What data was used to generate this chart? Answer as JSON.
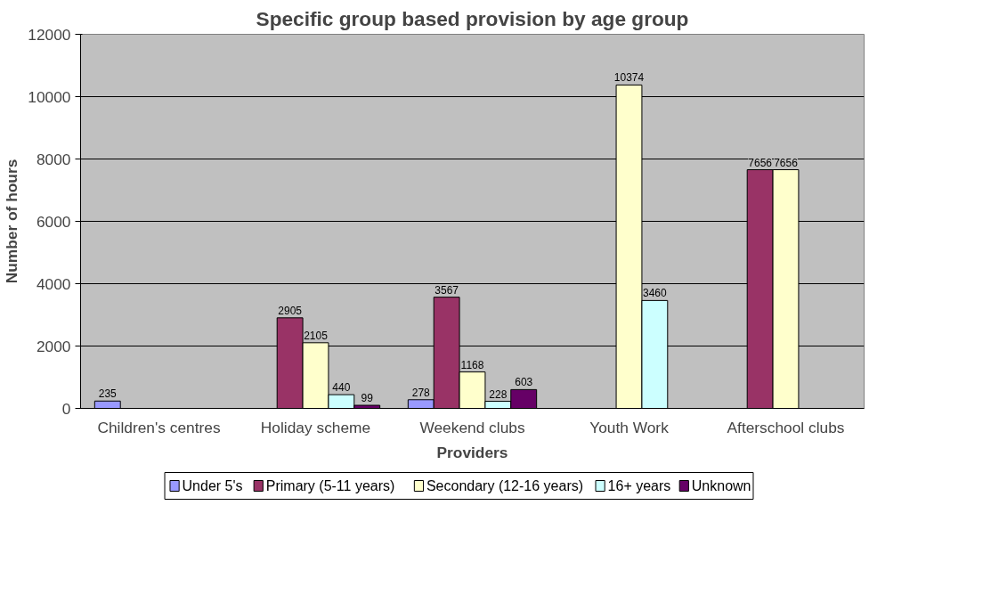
{
  "chart_data": {
    "type": "bar",
    "title": "Specific group based provision by age group",
    "xlabel": "Providers",
    "ylabel": "Number of hours",
    "categories": [
      "Children's centres",
      "Holiday scheme",
      "Weekend clubs",
      "Youth Work",
      "Afterschool clubs"
    ],
    "series": [
      {
        "name": "Under 5's",
        "color": "#9999ff",
        "values": [
          235,
          null,
          278,
          null,
          null
        ]
      },
      {
        "name": "Primary (5-11 years)",
        "color": "#993366",
        "values": [
          null,
          2905,
          3567,
          null,
          7656
        ]
      },
      {
        "name": "Secondary (12-16 years)",
        "color": "#ffffcc",
        "values": [
          null,
          2105,
          1168,
          10374,
          7656
        ]
      },
      {
        "name": "16+ years",
        "color": "#ccffff",
        "values": [
          null,
          440,
          228,
          3460,
          null
        ]
      },
      {
        "name": "Unknown",
        "color": "#660066",
        "values": [
          null,
          99,
          603,
          null,
          null
        ]
      }
    ],
    "ylim": [
      0,
      12000
    ],
    "yticks": [
      0,
      2000,
      4000,
      6000,
      8000,
      10000,
      12000
    ],
    "grid": "y",
    "legend": "bottom",
    "data_labels": true
  }
}
